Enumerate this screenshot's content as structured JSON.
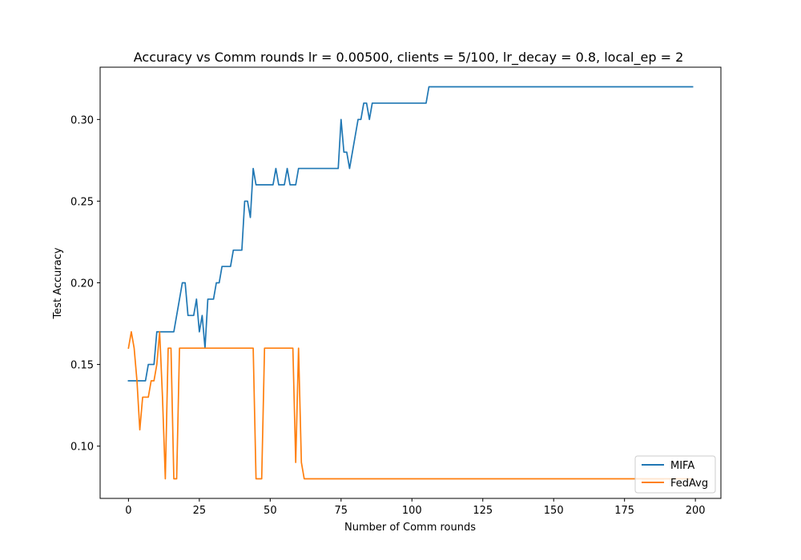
{
  "chart_data": {
    "type": "line",
    "title": "Accuracy vs Comm rounds lr = 0.00500, clients = 5/100, lr_decay = 0.8, local_ep = 2",
    "xlabel": "Number of Comm rounds",
    "ylabel": "Test Accuracy",
    "xlim": [
      -10,
      209
    ],
    "ylim": [
      0.068,
      0.332
    ],
    "x_ticks": [
      0,
      25,
      50,
      75,
      100,
      125,
      150,
      175,
      200
    ],
    "x_tick_labels": [
      "0",
      "25",
      "50",
      "75",
      "100",
      "125",
      "150",
      "175",
      "200"
    ],
    "y_ticks": [
      0.1,
      0.15,
      0.2,
      0.25,
      0.3
    ],
    "y_tick_labels": [
      "0.10",
      "0.15",
      "0.20",
      "0.25",
      "0.30"
    ],
    "grid": false,
    "legend_position": "lower-right",
    "series": [
      {
        "name": "MIFA",
        "color": "#1f77b4",
        "points": [
          [
            0,
            0.14
          ],
          [
            1,
            0.14
          ],
          [
            2,
            0.14
          ],
          [
            3,
            0.14
          ],
          [
            4,
            0.14
          ],
          [
            5,
            0.14
          ],
          [
            6,
            0.14
          ],
          [
            7,
            0.15
          ],
          [
            8,
            0.15
          ],
          [
            9,
            0.15
          ],
          [
            10,
            0.17
          ],
          [
            11,
            0.17
          ],
          [
            12,
            0.17
          ],
          [
            13,
            0.17
          ],
          [
            14,
            0.17
          ],
          [
            15,
            0.17
          ],
          [
            16,
            0.17
          ],
          [
            17,
            0.18
          ],
          [
            18,
            0.19
          ],
          [
            19,
            0.2
          ],
          [
            20,
            0.2
          ],
          [
            21,
            0.18
          ],
          [
            22,
            0.18
          ],
          [
            23,
            0.18
          ],
          [
            24,
            0.19
          ],
          [
            25,
            0.17
          ],
          [
            26,
            0.18
          ],
          [
            27,
            0.16
          ],
          [
            28,
            0.19
          ],
          [
            29,
            0.19
          ],
          [
            30,
            0.19
          ],
          [
            31,
            0.2
          ],
          [
            32,
            0.2
          ],
          [
            33,
            0.21
          ],
          [
            34,
            0.21
          ],
          [
            35,
            0.21
          ],
          [
            36,
            0.21
          ],
          [
            37,
            0.22
          ],
          [
            38,
            0.22
          ],
          [
            39,
            0.22
          ],
          [
            40,
            0.22
          ],
          [
            41,
            0.25
          ],
          [
            42,
            0.25
          ],
          [
            43,
            0.24
          ],
          [
            44,
            0.27
          ],
          [
            45,
            0.26
          ],
          [
            46,
            0.26
          ],
          [
            47,
            0.26
          ],
          [
            48,
            0.26
          ],
          [
            49,
            0.26
          ],
          [
            50,
            0.26
          ],
          [
            51,
            0.26
          ],
          [
            52,
            0.27
          ],
          [
            53,
            0.26
          ],
          [
            54,
            0.26
          ],
          [
            55,
            0.26
          ],
          [
            56,
            0.27
          ],
          [
            57,
            0.26
          ],
          [
            58,
            0.26
          ],
          [
            59,
            0.26
          ],
          [
            60,
            0.27
          ],
          [
            61,
            0.27
          ],
          [
            62,
            0.27
          ],
          [
            63,
            0.27
          ],
          [
            64,
            0.27
          ],
          [
            65,
            0.27
          ],
          [
            66,
            0.27
          ],
          [
            67,
            0.27
          ],
          [
            68,
            0.27
          ],
          [
            69,
            0.27
          ],
          [
            70,
            0.27
          ],
          [
            71,
            0.27
          ],
          [
            72,
            0.27
          ],
          [
            73,
            0.27
          ],
          [
            74,
            0.27
          ],
          [
            75,
            0.3
          ],
          [
            76,
            0.28
          ],
          [
            77,
            0.28
          ],
          [
            78,
            0.27
          ],
          [
            79,
            0.28
          ],
          [
            80,
            0.29
          ],
          [
            81,
            0.3
          ],
          [
            82,
            0.3
          ],
          [
            83,
            0.31
          ],
          [
            84,
            0.31
          ],
          [
            85,
            0.3
          ],
          [
            86,
            0.31
          ],
          [
            87,
            0.31
          ],
          [
            90,
            0.31
          ],
          [
            95,
            0.31
          ],
          [
            100,
            0.31
          ],
          [
            105,
            0.31
          ],
          [
            106,
            0.32
          ],
          [
            110,
            0.32
          ],
          [
            120,
            0.32
          ],
          [
            140,
            0.32
          ],
          [
            160,
            0.32
          ],
          [
            180,
            0.32
          ],
          [
            199,
            0.32
          ]
        ]
      },
      {
        "name": "FedAvg",
        "color": "#ff7f0e",
        "points": [
          [
            0,
            0.16
          ],
          [
            1,
            0.17
          ],
          [
            2,
            0.16
          ],
          [
            3,
            0.14
          ],
          [
            4,
            0.11
          ],
          [
            5,
            0.13
          ],
          [
            6,
            0.13
          ],
          [
            7,
            0.13
          ],
          [
            8,
            0.14
          ],
          [
            9,
            0.14
          ],
          [
            10,
            0.15
          ],
          [
            11,
            0.17
          ],
          [
            12,
            0.13
          ],
          [
            13,
            0.08
          ],
          [
            14,
            0.16
          ],
          [
            15,
            0.16
          ],
          [
            16,
            0.08
          ],
          [
            17,
            0.08
          ],
          [
            18,
            0.16
          ],
          [
            19,
            0.16
          ],
          [
            20,
            0.16
          ],
          [
            25,
            0.16
          ],
          [
            30,
            0.16
          ],
          [
            35,
            0.16
          ],
          [
            40,
            0.16
          ],
          [
            44,
            0.16
          ],
          [
            45,
            0.08
          ],
          [
            46,
            0.08
          ],
          [
            47,
            0.08
          ],
          [
            48,
            0.16
          ],
          [
            49,
            0.16
          ],
          [
            50,
            0.16
          ],
          [
            55,
            0.16
          ],
          [
            58,
            0.16
          ],
          [
            59,
            0.09
          ],
          [
            60,
            0.16
          ],
          [
            61,
            0.09
          ],
          [
            62,
            0.08
          ],
          [
            63,
            0.08
          ],
          [
            70,
            0.08
          ],
          [
            80,
            0.08
          ],
          [
            100,
            0.08
          ],
          [
            120,
            0.08
          ],
          [
            140,
            0.08
          ],
          [
            160,
            0.08
          ],
          [
            180,
            0.08
          ],
          [
            199,
            0.08
          ]
        ]
      }
    ]
  }
}
